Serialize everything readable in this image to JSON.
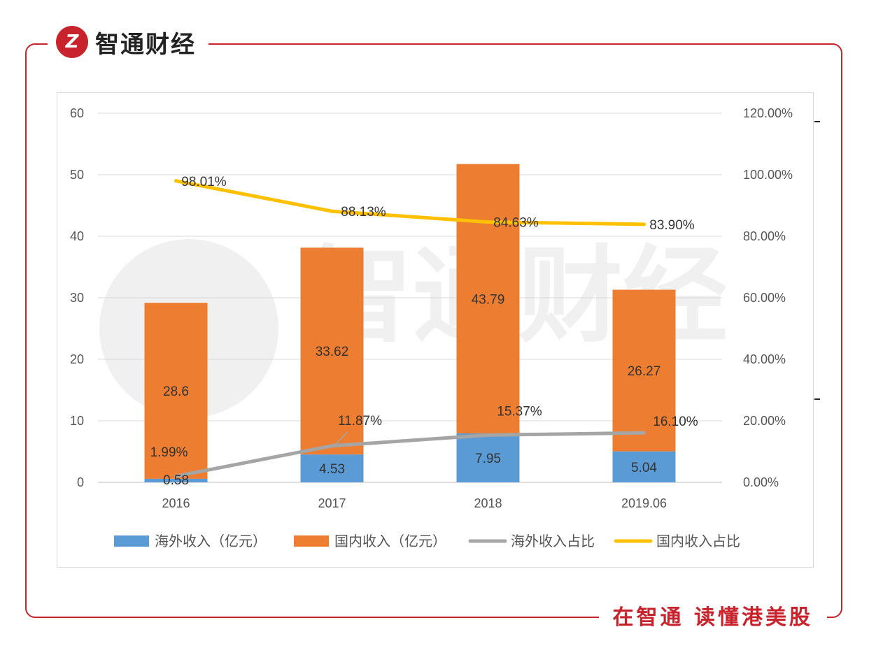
{
  "brand": {
    "logo_glyph": "Z",
    "name": "智通财经"
  },
  "slogan": "在智通  读懂港美股",
  "watermark": "智通财经",
  "colors": {
    "overseas_bar": "#5b9bd5",
    "domestic_bar": "#ed7d31",
    "overseas_line": "#a5a5a5",
    "domestic_line": "#ffc000",
    "frame": "#c8232c"
  },
  "chart_data": {
    "type": "bar",
    "stacked": true,
    "categories": [
      "2016",
      "2017",
      "2018",
      "2019.06"
    ],
    "series": [
      {
        "name": "海外收入（亿元）",
        "kind": "bar",
        "axis": "left",
        "values": [
          0.58,
          4.53,
          7.95,
          5.04
        ],
        "labels": [
          "0.58",
          "4.53",
          "7.95",
          "5.04"
        ]
      },
      {
        "name": "国内收入（亿元）",
        "kind": "bar",
        "axis": "left",
        "values": [
          28.6,
          33.62,
          43.79,
          26.27
        ],
        "labels": [
          "28.6",
          "33.62",
          "43.79",
          "26.27"
        ]
      },
      {
        "name": "海外收入占比",
        "kind": "line",
        "axis": "right",
        "values": [
          1.99,
          11.87,
          15.37,
          16.1
        ],
        "labels": [
          "1.99%",
          "11.87%",
          "15.37%",
          "16.10%"
        ]
      },
      {
        "name": "国内收入占比",
        "kind": "line",
        "axis": "right",
        "values": [
          98.01,
          88.13,
          84.63,
          83.9
        ],
        "labels": [
          "98.01%",
          "88.13%",
          "84.63%",
          "83.90%"
        ]
      }
    ],
    "left_axis": {
      "min": 0,
      "max": 60,
      "ticks": [
        "0",
        "10",
        "20",
        "30",
        "40",
        "50",
        "60"
      ]
    },
    "right_axis": {
      "min": 0,
      "max": 120,
      "ticks": [
        "0.00%",
        "20.00%",
        "40.00%",
        "60.00%",
        "80.00%",
        "100.00%",
        "120.00%"
      ]
    },
    "legend_position": "bottom",
    "grid": true
  }
}
